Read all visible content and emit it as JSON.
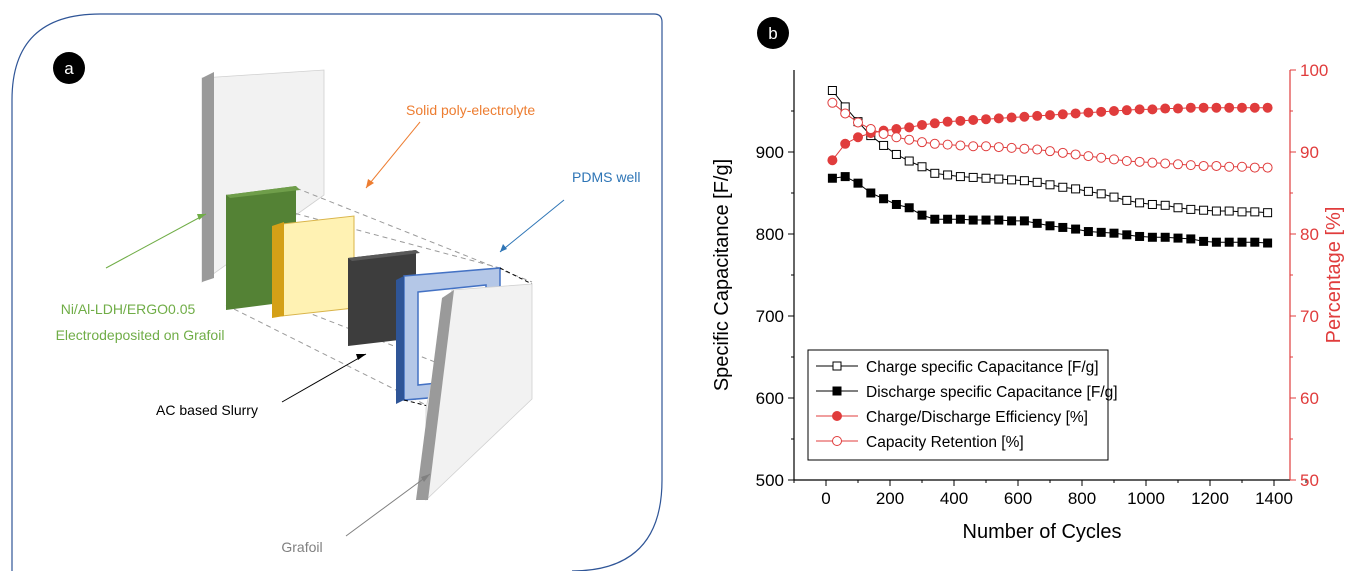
{
  "panel_a": {
    "badge": "a",
    "labels": {
      "electrolyte": "Solid poly-electrolyte",
      "pdms": "PDMS well",
      "electrode_line1": "Ni/Al-LDH/ERGO0.05",
      "electrode_line2": "Electrodeposited on Grafoil",
      "slurry": "AC based Slurry",
      "grafoil": "Grafoil"
    },
    "colors": {
      "electrolyte": "#ed7d31",
      "pdms": "#2e75b6",
      "electrode": "#70ad47",
      "slurry": "#000000",
      "grafoil": "#808080",
      "green_layer": "#548235",
      "yellow_layer": "#fff2b3",
      "black_layer": "#404040",
      "blue_frame": "#b4c7e7"
    }
  },
  "panel_b": {
    "badge": "b",
    "chart_data": {
      "type": "scatter",
      "xlabel": "Number of Cycles",
      "ylabel_left": "Specific Capacitance [F/g]",
      "ylabel_right": "Percentage [%]",
      "xlim": [
        -100,
        1450
      ],
      "ylim_left": [
        500,
        1000
      ],
      "ylim_right": [
        50,
        100
      ],
      "xticks": [
        "0",
        "200",
        "400",
        "600",
        "800",
        "1000",
        "1200",
        "1400"
      ],
      "yticks_left": [
        "500",
        "600",
        "700",
        "800",
        "900"
      ],
      "yticks_right": [
        "50",
        "60",
        "70",
        "80",
        "90",
        "100"
      ],
      "right_axis_color": "#e03c3c",
      "legend_position": "bottom-left",
      "series": [
        {
          "name": "Charge specific Capacitance [F/g]",
          "axis": "left",
          "color": "#000000",
          "marker": "square-open",
          "x": [
            20,
            60,
            100,
            140,
            180,
            220,
            260,
            300,
            340,
            380,
            420,
            460,
            500,
            540,
            580,
            620,
            660,
            700,
            740,
            780,
            820,
            860,
            900,
            940,
            980,
            1020,
            1060,
            1100,
            1140,
            1180,
            1220,
            1260,
            1300,
            1340,
            1380
          ],
          "y": [
            975,
            955,
            937,
            920,
            908,
            897,
            889,
            882,
            874,
            872,
            870,
            869,
            868,
            867,
            866,
            865,
            863,
            860,
            857,
            855,
            852,
            849,
            845,
            841,
            838,
            836,
            835,
            832,
            830,
            829,
            828,
            828,
            827,
            827,
            826
          ]
        },
        {
          "name": "Discharge specific Capacitance [F/g]",
          "axis": "left",
          "color": "#000000",
          "marker": "square-filled",
          "x": [
            20,
            60,
            100,
            140,
            180,
            220,
            260,
            300,
            340,
            380,
            420,
            460,
            500,
            540,
            580,
            620,
            660,
            700,
            740,
            780,
            820,
            860,
            900,
            940,
            980,
            1020,
            1060,
            1100,
            1140,
            1180,
            1220,
            1260,
            1300,
            1340,
            1380
          ],
          "y": [
            868,
            870,
            862,
            850,
            843,
            836,
            832,
            823,
            818,
            818,
            818,
            817,
            817,
            817,
            816,
            816,
            813,
            810,
            808,
            806,
            803,
            802,
            801,
            799,
            797,
            796,
            796,
            795,
            794,
            791,
            790,
            790,
            790,
            790,
            789
          ]
        },
        {
          "name": "Charge/Discharge Efficiency [%]",
          "axis": "right",
          "color": "#e03c3c",
          "marker": "circle-filled",
          "x": [
            20,
            60,
            100,
            140,
            180,
            220,
            260,
            300,
            340,
            380,
            420,
            460,
            500,
            540,
            580,
            620,
            660,
            700,
            740,
            780,
            820,
            860,
            900,
            940,
            980,
            1020,
            1060,
            1100,
            1140,
            1180,
            1220,
            1260,
            1300,
            1340,
            1380
          ],
          "y": [
            89.0,
            91.0,
            91.8,
            92.3,
            92.6,
            92.8,
            93.0,
            93.3,
            93.5,
            93.7,
            93.8,
            93.9,
            94.0,
            94.1,
            94.2,
            94.3,
            94.4,
            94.5,
            94.6,
            94.7,
            94.8,
            94.9,
            95.0,
            95.1,
            95.2,
            95.2,
            95.3,
            95.3,
            95.4,
            95.4,
            95.4,
            95.4,
            95.4,
            95.4,
            95.4
          ]
        },
        {
          "name": "Capacity Retention [%]",
          "axis": "right",
          "color": "#e03c3c",
          "marker": "circle-open",
          "x": [
            20,
            60,
            100,
            140,
            180,
            220,
            260,
            300,
            340,
            380,
            420,
            460,
            500,
            540,
            580,
            620,
            660,
            700,
            740,
            780,
            820,
            860,
            900,
            940,
            980,
            1020,
            1060,
            1100,
            1140,
            1180,
            1220,
            1260,
            1300,
            1340,
            1380
          ],
          "y": [
            96.0,
            94.7,
            93.6,
            92.8,
            92.2,
            91.8,
            91.5,
            91.2,
            91.0,
            90.9,
            90.8,
            90.7,
            90.7,
            90.6,
            90.5,
            90.4,
            90.3,
            90.1,
            89.9,
            89.7,
            89.5,
            89.3,
            89.1,
            88.9,
            88.8,
            88.7,
            88.6,
            88.5,
            88.4,
            88.3,
            88.3,
            88.2,
            88.2,
            88.1,
            88.1
          ]
        }
      ]
    }
  }
}
